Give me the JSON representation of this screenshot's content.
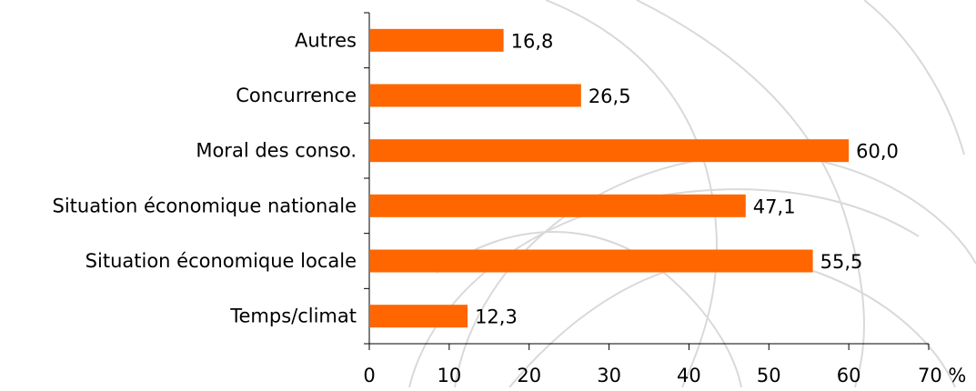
{
  "chart_data": {
    "type": "bar",
    "orientation": "horizontal",
    "categories": [
      "Autres",
      "Concurrence",
      "Moral des conso.",
      "Situation économique nationale",
      "Situation économique locale",
      "Temps/climat"
    ],
    "values": [
      16.8,
      26.5,
      60.0,
      47.1,
      55.5,
      12.3
    ],
    "value_labels": [
      "16,8",
      "26,5",
      "60,0",
      "47,1",
      "55,5",
      "12,3"
    ],
    "x_ticks": [
      "0",
      "10",
      "20",
      "30",
      "40",
      "50",
      "60",
      "70 %"
    ],
    "xlim": [
      0,
      70
    ],
    "grid": false,
    "colors": {
      "bar": "#ff6600",
      "axis": "#000000",
      "watermark": "#d9d9d9"
    }
  }
}
